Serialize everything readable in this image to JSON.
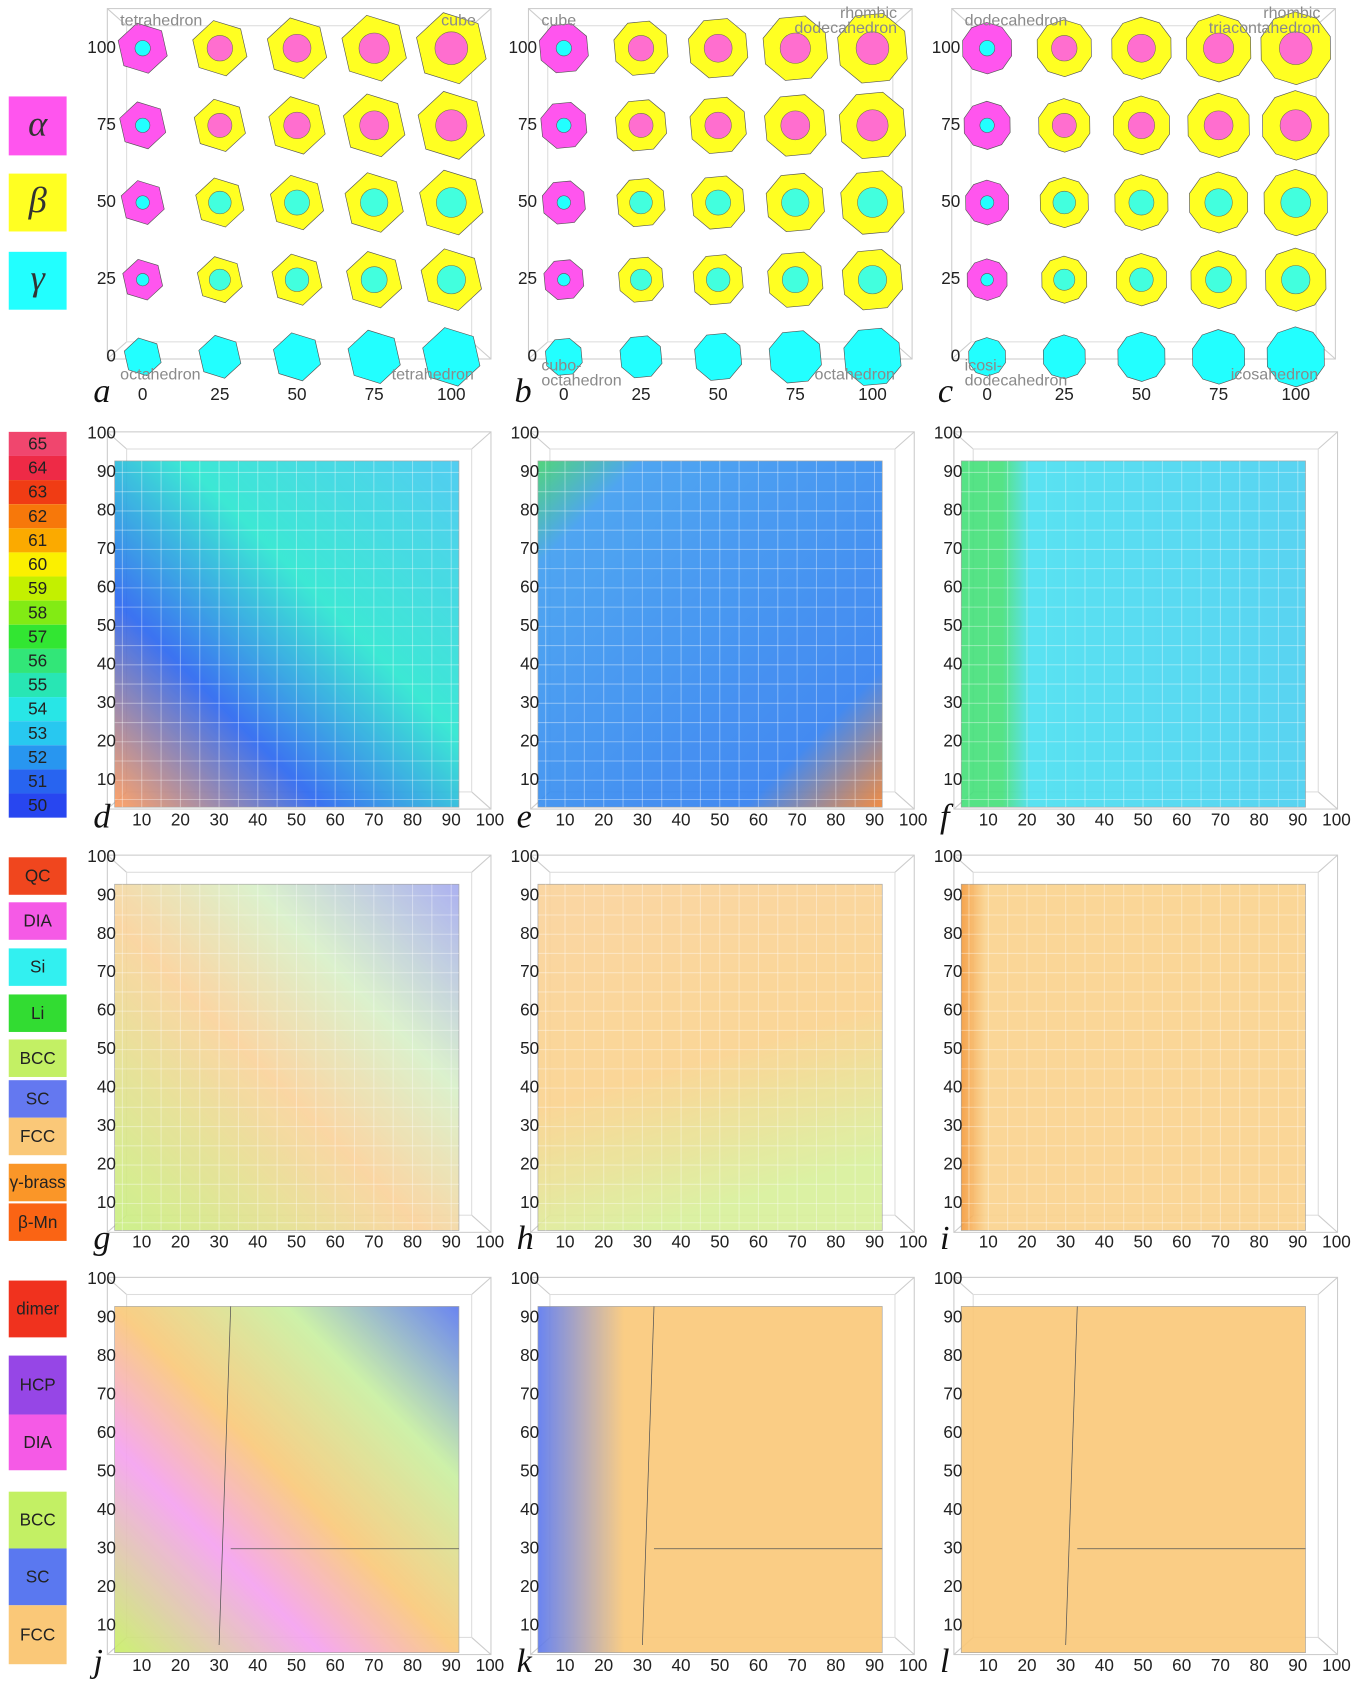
{
  "legends": {
    "shape": [
      {
        "label": "α",
        "color": "#ff55ee"
      },
      {
        "label": "β",
        "color": "#ffff22"
      },
      {
        "label": "γ",
        "color": "#22ffff"
      }
    ],
    "melting": [
      {
        "label": "65",
        "color": "#f0466e"
      },
      {
        "label": "64",
        "color": "#ee2a46"
      },
      {
        "label": "63",
        "color": "#f03c14"
      },
      {
        "label": "62",
        "color": "#f7780a"
      },
      {
        "label": "61",
        "color": "#fbaa00"
      },
      {
        "label": "60",
        "color": "#fbf000"
      },
      {
        "label": "59",
        "color": "#c3f000"
      },
      {
        "label": "58",
        "color": "#82eb14"
      },
      {
        "label": "57",
        "color": "#32e632"
      },
      {
        "label": "56",
        "color": "#32e678"
      },
      {
        "label": "55",
        "color": "#28e6b4"
      },
      {
        "label": "54",
        "color": "#28e6e6"
      },
      {
        "label": "53",
        "color": "#28c8f0"
      },
      {
        "label": "52",
        "color": "#2896f0"
      },
      {
        "label": "51",
        "color": "#2864f0"
      },
      {
        "label": "50",
        "color": "#2846f0"
      }
    ],
    "structure": [
      {
        "label": "QC",
        "color": "#f0461e"
      },
      {
        "label": "DIA",
        "color": "#f55ae6"
      },
      {
        "label": "Si",
        "color": "#32f0f0"
      },
      {
        "label": "Li",
        "color": "#32dc32"
      },
      {
        "label": "BCC",
        "color": "#c3f064"
      },
      {
        "label": "SC",
        "color": "#6478f0"
      },
      {
        "label": "FCC",
        "color": "#fac878"
      },
      {
        "label": "γ-brass",
        "color": "#fa9628"
      },
      {
        "label": "β-Mn",
        "color": "#fa6414"
      }
    ],
    "structure2": [
      {
        "label": "dimer",
        "color": "#f0321e"
      },
      {
        "label": "HCP",
        "color": "#9646e6"
      },
      {
        "label": "DIA",
        "color": "#f55ae6"
      },
      {
        "label": "BCC",
        "color": "#c3f064"
      },
      {
        "label": "SC",
        "color": "#5a78f0"
      },
      {
        "label": "FCC",
        "color": "#fac878"
      }
    ]
  },
  "rows": [
    {
      "xticks": [
        0,
        25,
        50,
        75,
        100
      ],
      "yticks": [
        0,
        25,
        50,
        75,
        100
      ],
      "panels": [
        {
          "letter": "a",
          "top_left": [
            "tetrahedron"
          ],
          "top_right": [
            "cube"
          ],
          "bottom_left": [
            "octahedron"
          ],
          "bottom_right": [
            "tetrahedron"
          ]
        },
        {
          "letter": "b",
          "top_left": [
            "cube"
          ],
          "top_right": [
            "rhombic",
            "dodecahedron"
          ],
          "bottom_left": [
            "cubo-",
            "octahedron"
          ],
          "bottom_right": [
            "octahedron"
          ]
        },
        {
          "letter": "c",
          "top_left": [
            "dodecahedron"
          ],
          "top_right": [
            "rhombic",
            "triacontahedron"
          ],
          "bottom_left": [
            "icosi-",
            "dodecahedron"
          ],
          "bottom_right": [
            "icosahedron"
          ]
        }
      ]
    },
    {
      "xticks": [
        10,
        20,
        30,
        40,
        50,
        60,
        70,
        80,
        90,
        100
      ],
      "yticks": [
        10,
        20,
        30,
        40,
        50,
        60,
        70,
        80,
        90,
        100
      ],
      "panels": [
        {
          "letter": "d"
        },
        {
          "letter": "e"
        },
        {
          "letter": "f"
        }
      ]
    },
    {
      "xticks": [
        10,
        20,
        30,
        40,
        50,
        60,
        70,
        80,
        90,
        100
      ],
      "yticks": [
        10,
        20,
        30,
        40,
        50,
        60,
        70,
        80,
        90,
        100
      ],
      "panels": [
        {
          "letter": "g"
        },
        {
          "letter": "h"
        },
        {
          "letter": "i"
        }
      ]
    },
    {
      "xticks": [
        10,
        20,
        30,
        40,
        50,
        60,
        70,
        80,
        90,
        100
      ],
      "yticks": [
        10,
        20,
        30,
        40,
        50,
        60,
        70,
        80,
        90,
        100
      ],
      "panels": [
        {
          "letter": "j"
        },
        {
          "letter": "k"
        },
        {
          "letter": "l"
        }
      ]
    }
  ]
}
